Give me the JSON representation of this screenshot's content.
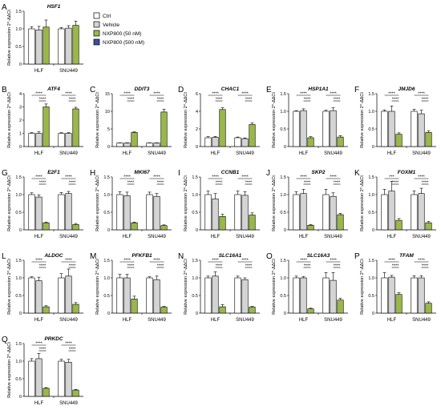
{
  "legend": {
    "position": "right-of-panel-A",
    "entries": [
      {
        "label": "Ctrl",
        "color": "#ffffff"
      },
      {
        "label": "Vehicle",
        "color": "#d4d4d4"
      },
      {
        "label": "NXP800 (50 nM)",
        "color": "#9ab848"
      },
      {
        "label": "NXP800 (500 nM)",
        "color": "#3a4fa8"
      }
    ]
  },
  "chart_data": [
    {
      "panel": "A",
      "type": "bar",
      "title": "HSF1",
      "ylabel": "Relative expression 2^-ΔΔCt",
      "categories": [
        "HLF",
        "SNU449"
      ],
      "ylim": [
        0,
        1.5
      ],
      "yticks": [
        "0",
        "0.5",
        "1.0",
        "1.5"
      ],
      "values": [
        [
          1.0,
          0.97,
          1.05
        ],
        [
          1.0,
          1.02,
          1.1
        ]
      ],
      "errors": [
        [
          0.06,
          0.1,
          0.2
        ],
        [
          0.04,
          0.07,
          0.12
        ]
      ],
      "sig": []
    },
    {
      "panel": "B",
      "type": "bar",
      "title": "ATF4",
      "ylabel": "Relative expression 2^-ΔΔCt",
      "categories": [
        "HLF",
        "SNU449"
      ],
      "ylim": [
        0,
        4
      ],
      "yticks": [
        "0",
        "1",
        "2",
        "3",
        "4"
      ],
      "values": [
        [
          1.0,
          1.0,
          3.0
        ],
        [
          1.0,
          1.0,
          2.85
        ]
      ],
      "errors": [
        [
          0.05,
          0.12,
          0.22
        ],
        [
          0.05,
          0.05,
          0.12
        ]
      ],
      "sig": [
        [
          "****",
          "****"
        ],
        [
          "****",
          "****"
        ]
      ]
    },
    {
      "panel": "C",
      "type": "bar",
      "title": "DDIT3",
      "ylabel": "Relative expression 2^-ΔΔCt",
      "categories": [
        "HLF",
        "SNU449"
      ],
      "ylim": [
        0,
        15
      ],
      "yticks": [
        "0",
        "5",
        "10",
        "15"
      ],
      "values": [
        [
          1.0,
          1.0,
          4.0
        ],
        [
          1.0,
          1.0,
          9.8
        ]
      ],
      "errors": [
        [
          0.05,
          0.05,
          0.18
        ],
        [
          0.05,
          0.05,
          0.8
        ]
      ],
      "sig": [
        [
          "****",
          "****"
        ],
        [
          "****",
          "****"
        ]
      ]
    },
    {
      "panel": "D",
      "type": "bar",
      "title": "CHAC1",
      "ylabel": "Relative expression 2^-ΔΔCt",
      "categories": [
        "HLF",
        "SNU449"
      ],
      "ylim": [
        0,
        6
      ],
      "yticks": [
        "0",
        "2",
        "4",
        "6"
      ],
      "values": [
        [
          1.0,
          1.05,
          4.2
        ],
        [
          1.0,
          0.9,
          2.5
        ]
      ],
      "errors": [
        [
          0.12,
          0.1,
          0.2
        ],
        [
          0.08,
          0.08,
          0.18
        ]
      ],
      "sig": [
        [
          "****",
          "****"
        ],
        [
          "****",
          "****"
        ]
      ]
    },
    {
      "panel": "E",
      "type": "bar",
      "title": "HSP1A1",
      "ylabel": "Relative expression 2^-ΔΔCt",
      "categories": [
        "HLF",
        "SNU449"
      ],
      "ylim": [
        0,
        1.5
      ],
      "yticks": [
        "0",
        "0.5",
        "1.0",
        "1.5"
      ],
      "values": [
        [
          1.0,
          1.02,
          0.25
        ],
        [
          1.0,
          1.02,
          0.27
        ]
      ],
      "errors": [
        [
          0.02,
          0.05,
          0.03
        ],
        [
          0.03,
          0.08,
          0.04
        ]
      ],
      "sig": [
        [
          "****",
          "****"
        ],
        [
          "****",
          "****"
        ]
      ]
    },
    {
      "panel": "F",
      "type": "bar",
      "title": "JMJD6",
      "ylabel": "Relative expression 2^-ΔΔCt",
      "categories": [
        "HLF",
        "SNU449"
      ],
      "ylim": [
        0,
        1.5
      ],
      "yticks": [
        "0",
        "0.5",
        "1.0",
        "1.5"
      ],
      "values": [
        [
          1.0,
          1.0,
          0.35
        ],
        [
          1.0,
          0.93,
          0.4
        ]
      ],
      "errors": [
        [
          0.04,
          0.15,
          0.04
        ],
        [
          0.06,
          0.1,
          0.05
        ]
      ],
      "sig": [
        [
          "****",
          "****"
        ],
        [
          "****",
          "****"
        ]
      ]
    },
    {
      "panel": "G",
      "type": "bar",
      "title": "E2F1",
      "ylabel": "Relative expression 2^-ΔΔCt",
      "categories": [
        "HLF",
        "SNU449"
      ],
      "ylim": [
        0,
        1.5
      ],
      "yticks": [
        "0",
        "0.5",
        "1.0",
        "1.5"
      ],
      "values": [
        [
          1.0,
          0.93,
          0.2
        ],
        [
          1.0,
          1.03,
          0.15
        ]
      ],
      "errors": [
        [
          0.05,
          0.06,
          0.02
        ],
        [
          0.06,
          0.06,
          0.03
        ]
      ],
      "sig": [
        [
          "****",
          "****"
        ],
        [
          "****",
          "****"
        ]
      ]
    },
    {
      "panel": "H",
      "type": "bar",
      "title": "MKI67",
      "ylabel": "Relative expression 2^-ΔΔCt",
      "categories": [
        "HLF",
        "SNU449"
      ],
      "ylim": [
        0,
        1.5
      ],
      "yticks": [
        "0",
        "0.5",
        "1.0",
        "1.5"
      ],
      "values": [
        [
          1.0,
          0.97,
          0.2
        ],
        [
          1.0,
          0.95,
          0.12
        ]
      ],
      "errors": [
        [
          0.08,
          0.1,
          0.02
        ],
        [
          0.07,
          0.08,
          0.02
        ]
      ],
      "sig": [
        [
          "****",
          "****"
        ],
        [
          "****",
          "****"
        ]
      ]
    },
    {
      "panel": "I",
      "type": "bar",
      "title": "CCNB1",
      "ylabel": "Relative expression 2^-ΔΔCt",
      "categories": [
        "HLF",
        "SNU449"
      ],
      "ylim": [
        0,
        1.5
      ],
      "yticks": [
        "0",
        "0.5",
        "1.0",
        "1.5"
      ],
      "values": [
        [
          1.0,
          0.88,
          0.38
        ],
        [
          1.0,
          0.98,
          0.42
        ]
      ],
      "errors": [
        [
          0.1,
          0.15,
          0.06
        ],
        [
          0.1,
          0.1,
          0.06
        ]
      ],
      "sig": [
        [
          "****",
          "****"
        ],
        [
          "****",
          "****"
        ]
      ]
    },
    {
      "panel": "J",
      "type": "bar",
      "title": "SKP2",
      "ylabel": "Relative expression 2^-ΔΔCt",
      "categories": [
        "HLF",
        "SNU449"
      ],
      "ylim": [
        0,
        1.5
      ],
      "yticks": [
        "0",
        "0.5",
        "1.0",
        "1.5"
      ],
      "values": [
        [
          1.0,
          1.03,
          0.13
        ],
        [
          1.0,
          0.95,
          0.43
        ]
      ],
      "errors": [
        [
          0.08,
          0.12,
          0.02
        ],
        [
          0.15,
          0.1,
          0.04
        ]
      ],
      "sig": [
        [
          "****",
          "****"
        ],
        [
          "****",
          "****"
        ]
      ]
    },
    {
      "panel": "K",
      "type": "bar",
      "title": "FOXM1",
      "ylabel": "Relative expression 2^-ΔΔCt",
      "categories": [
        "HLF",
        "SNU449"
      ],
      "ylim": [
        0,
        1.5
      ],
      "yticks": [
        "0",
        "0.5",
        "1.0",
        "1.5"
      ],
      "values": [
        [
          1.0,
          1.1,
          0.27
        ],
        [
          1.0,
          1.03,
          0.2
        ]
      ],
      "errors": [
        [
          0.15,
          0.28,
          0.05
        ],
        [
          0.1,
          0.15,
          0.04
        ]
      ],
      "sig": [
        [
          "***",
          "****"
        ],
        [
          "****",
          "****"
        ]
      ]
    },
    {
      "panel": "L",
      "type": "bar",
      "title": "ALDOC",
      "ylabel": "Relative expression 2^-ΔΔCt",
      "categories": [
        "HLF",
        "SNU449"
      ],
      "ylim": [
        0,
        1.5
      ],
      "yticks": [
        "0",
        "0.5",
        "1.0",
        "1.5"
      ],
      "values": [
        [
          1.0,
          0.92,
          0.18
        ],
        [
          1.0,
          1.05,
          0.25
        ]
      ],
      "errors": [
        [
          0.03,
          0.1,
          0.03
        ],
        [
          0.12,
          0.2,
          0.05
        ]
      ],
      "sig": [
        [
          "****",
          "****"
        ],
        [
          "****",
          "****"
        ]
      ]
    },
    {
      "panel": "M",
      "type": "bar",
      "title": "PFKFB1",
      "ylabel": "Relative expression 2^-ΔΔCt",
      "categories": [
        "HLF",
        "SNU449"
      ],
      "ylim": [
        0,
        1.5
      ],
      "yticks": [
        "0",
        "0.5",
        "1.0",
        "1.5"
      ],
      "values": [
        [
          1.0,
          1.0,
          0.4
        ],
        [
          1.0,
          0.95,
          0.17
        ]
      ],
      "errors": [
        [
          0.1,
          0.1,
          0.08
        ],
        [
          0.03,
          0.1,
          0.02
        ]
      ],
      "sig": [
        [
          "****",
          "****"
        ],
        [
          "****",
          "****"
        ]
      ]
    },
    {
      "panel": "N",
      "type": "bar",
      "title": "SLC16A1",
      "ylabel": "Relative expression 2^-ΔΔCt",
      "categories": [
        "HLF",
        "SNU449"
      ],
      "ylim": [
        0,
        1.5
      ],
      "yticks": [
        "0",
        "0.5",
        "1.0",
        "1.5"
      ],
      "values": [
        [
          1.0,
          1.05,
          0.18
        ],
        [
          1.0,
          0.95,
          0.17
        ]
      ],
      "errors": [
        [
          0.05,
          0.12,
          0.06
        ],
        [
          0.05,
          0.05,
          0.02
        ]
      ],
      "sig": [
        [
          "****",
          "****"
        ],
        [
          "****",
          "****"
        ]
      ]
    },
    {
      "panel": "O",
      "type": "bar",
      "title": "SLC16A3",
      "ylabel": "Relative expression 2^-ΔΔCt",
      "categories": [
        "HLF",
        "SNU449"
      ],
      "ylim": [
        0,
        1.5
      ],
      "yticks": [
        "0",
        "0.5",
        "1.0",
        "1.5"
      ],
      "values": [
        [
          1.0,
          1.0,
          0.12
        ],
        [
          1.0,
          0.93,
          0.37
        ]
      ],
      "errors": [
        [
          0.05,
          0.04,
          0.02
        ],
        [
          0.15,
          0.22,
          0.05
        ]
      ],
      "sig": [
        [
          "****",
          "****"
        ],
        [
          "****",
          "****"
        ]
      ]
    },
    {
      "panel": "P",
      "type": "bar",
      "title": "TFAM",
      "ylabel": "Relative expression 2^-ΔΔCt",
      "categories": [
        "HLF",
        "SNU449"
      ],
      "ylim": [
        0,
        1.5
      ],
      "yticks": [
        "0",
        "0.5",
        "1.0",
        "1.5"
      ],
      "values": [
        [
          1.0,
          1.02,
          0.53
        ],
        [
          1.0,
          1.0,
          0.28
        ]
      ],
      "errors": [
        [
          0.15,
          0.05,
          0.05
        ],
        [
          0.06,
          0.06,
          0.04
        ]
      ],
      "sig": [
        [
          "****",
          "****"
        ],
        [
          "****",
          "****"
        ]
      ]
    },
    {
      "panel": "Q",
      "type": "bar",
      "title": "PRKDC",
      "ylabel": "Relative expression 2^-ΔΔCt",
      "categories": [
        "HLF",
        "SNU449"
      ],
      "ylim": [
        0,
        1.5
      ],
      "yticks": [
        "0",
        "0.5",
        "1.0",
        "1.5"
      ],
      "values": [
        [
          1.0,
          1.07,
          0.23
        ],
        [
          1.0,
          0.97,
          0.18
        ]
      ],
      "errors": [
        [
          0.07,
          0.15,
          0.02
        ],
        [
          0.05,
          0.08,
          0.02
        ]
      ],
      "sig": [
        [
          "****",
          "****"
        ],
        [
          "****",
          "****"
        ]
      ]
    }
  ]
}
